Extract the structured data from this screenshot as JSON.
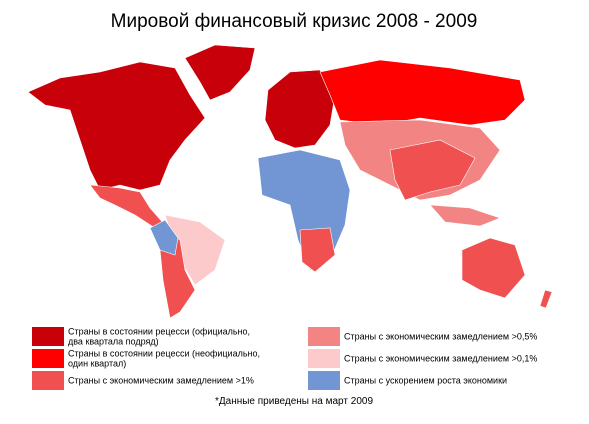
{
  "title": "Мировой финансовый кризис 2008 - 2009",
  "legend": [
    {
      "lines": [
        "Страны в состоянии рецесси (официально,",
        "два квартала подряд)"
      ],
      "color": "#c8000a"
    },
    {
      "lines": [
        "Страны в состоянии рецесси (неофициально,",
        "один квартал)"
      ],
      "color": "#ff0000"
    },
    {
      "lines": [
        "Страны с экономическим замедлением >1%"
      ],
      "color": "#f05050"
    },
    {
      "lines": [
        "Страны с экономическим замедлением >0,5%"
      ],
      "color": "#f28484"
    },
    {
      "lines": [
        "Страны с экономическим замедлением >0,1%"
      ],
      "color": "#fccaca"
    },
    {
      "lines": [
        "Страны с ускорением роста экономики"
      ],
      "color": "#7196d3"
    }
  ],
  "footnote": "*Данные приведены на март 2009"
}
